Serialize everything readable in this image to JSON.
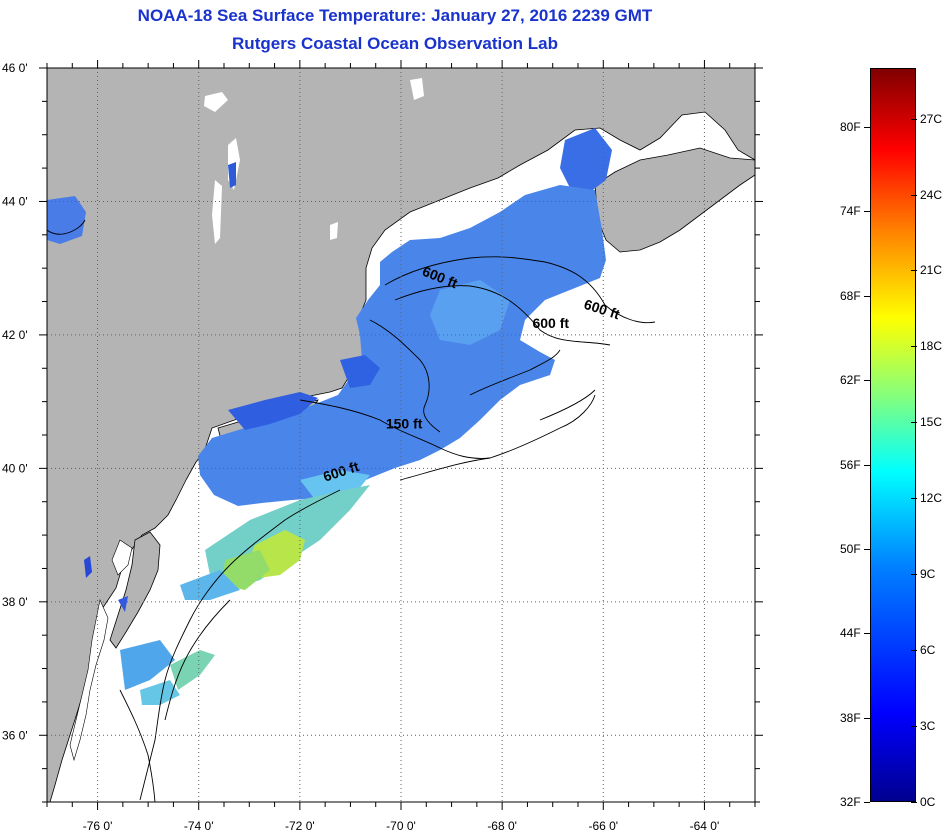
{
  "header": {
    "title": "NOAA-18 Sea Surface Temperature:  January 27, 2016 2239 GMT",
    "subtitle": "Rutgers Coastal Ocean Observation Lab"
  },
  "map": {
    "lon_range": [
      -77,
      -63
    ],
    "lat_range": [
      35,
      46
    ],
    "lat_ticks": [
      {
        "value": 46,
        "label": "46 0'"
      },
      {
        "value": 44,
        "label": "44 0'"
      },
      {
        "value": 42,
        "label": "42 0'"
      },
      {
        "value": 40,
        "label": "40 0'"
      },
      {
        "value": 38,
        "label": "38 0'"
      },
      {
        "value": 36,
        "label": "36 0'"
      }
    ],
    "lon_ticks": [
      {
        "value": -76,
        "label": "-76 0'"
      },
      {
        "value": -74,
        "label": "-74 0'"
      },
      {
        "value": -72,
        "label": "-72 0'"
      },
      {
        "value": -70,
        "label": "-70 0'"
      },
      {
        "value": -68,
        "label": "-68 0'"
      },
      {
        "value": -66,
        "label": "-66 0'"
      },
      {
        "value": -64,
        "label": "-64 0'"
      }
    ],
    "contour_labels": [
      {
        "text": "600 ft",
        "lon": -69.6,
        "lat": 42.9
      },
      {
        "text": "600 ft",
        "lon": -66.4,
        "lat": 42.4
      },
      {
        "text": "600 ft",
        "lon": -67.4,
        "lat": 42.1
      },
      {
        "text": "150 ft",
        "lon": -70.3,
        "lat": 40.6
      },
      {
        "text": "600 ft",
        "lon": -71.5,
        "lat": 39.8
      }
    ],
    "colors": {
      "land": "#b4b4b4",
      "no_data": "#ffffff",
      "grid": "#606060"
    }
  },
  "colorbar": {
    "fahrenheit_labels": [
      "80F",
      "74F",
      "68F",
      "62F",
      "56F",
      "50F",
      "44F",
      "38F",
      "32F"
    ],
    "celsius_labels": [
      "27C",
      "24C",
      "21C",
      "18C",
      "15C",
      "12C",
      "9C",
      "6C",
      "3C",
      "0C"
    ],
    "range_c": [
      0,
      29
    ],
    "colormap": "jet"
  }
}
